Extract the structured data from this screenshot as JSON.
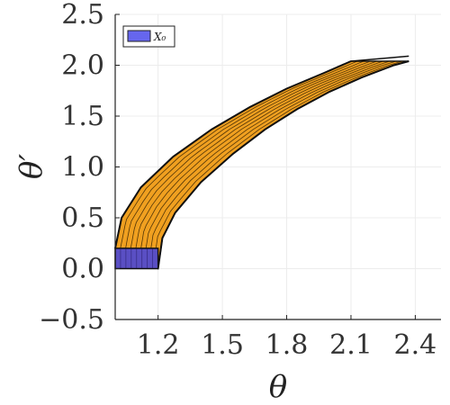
{
  "chart_data": {
    "type": "area",
    "xlabel": "θ",
    "ylabel": "θ′",
    "xlim": [
      1.0,
      2.52
    ],
    "ylim": [
      -0.5,
      2.5
    ],
    "xticks": [
      1.2,
      1.5,
      1.8,
      2.1,
      2.4
    ],
    "xtick_labels": [
      "1.2",
      "1.5",
      "1.8",
      "2.1",
      "2.4"
    ],
    "yticks": [
      -0.5,
      0.0,
      0.5,
      1.0,
      1.5,
      2.0,
      2.5
    ],
    "ytick_labels": [
      "−0.5",
      "0.0",
      "0.5",
      "1.0",
      "1.5",
      "2.0",
      "2.5"
    ],
    "grid": true,
    "legend_position": "top-left",
    "legend": [
      {
        "label": "X₀",
        "color": "#6666ee"
      }
    ],
    "initial_set": {
      "name": "X₀",
      "theta": [
        1.0,
        1.2
      ],
      "theta_dot": [
        0.0,
        0.2
      ],
      "color": "#5a4fc4"
    },
    "reach_tube": {
      "color": "#f0a020",
      "inner_boundary": [
        [
          1.2,
          0.0
        ],
        [
          1.22,
          0.3
        ],
        [
          1.28,
          0.55
        ],
        [
          1.4,
          0.85
        ],
        [
          1.55,
          1.13
        ],
        [
          1.7,
          1.37
        ],
        [
          1.85,
          1.57
        ],
        [
          2.0,
          1.74
        ],
        [
          2.15,
          1.88
        ],
        [
          2.3,
          2.0
        ],
        [
          2.37,
          2.04
        ]
      ],
      "outer_boundary": [
        [
          1.0,
          0.2
        ],
        [
          1.03,
          0.5
        ],
        [
          1.12,
          0.8
        ],
        [
          1.27,
          1.1
        ],
        [
          1.45,
          1.37
        ],
        [
          1.63,
          1.59
        ],
        [
          1.8,
          1.77
        ],
        [
          1.97,
          1.92
        ],
        [
          2.1,
          2.04
        ]
      ],
      "end_cap": [
        [
          2.1,
          2.04
        ],
        [
          2.37,
          2.09
        ]
      ]
    }
  }
}
